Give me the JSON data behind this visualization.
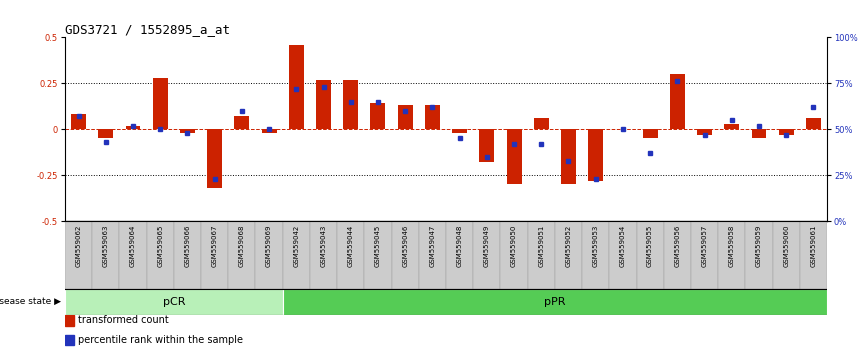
{
  "title": "GDS3721 / 1552895_a_at",
  "samples": [
    "GSM559062",
    "GSM559063",
    "GSM559064",
    "GSM559065",
    "GSM559066",
    "GSM559067",
    "GSM559068",
    "GSM559069",
    "GSM559042",
    "GSM559043",
    "GSM559044",
    "GSM559045",
    "GSM559046",
    "GSM559047",
    "GSM559048",
    "GSM559049",
    "GSM559050",
    "GSM559051",
    "GSM559052",
    "GSM559053",
    "GSM559054",
    "GSM559055",
    "GSM559056",
    "GSM559057",
    "GSM559058",
    "GSM559059",
    "GSM559060",
    "GSM559061"
  ],
  "red_bars": [
    0.08,
    -0.05,
    0.02,
    0.28,
    -0.02,
    -0.32,
    0.07,
    -0.02,
    0.46,
    0.27,
    0.27,
    0.14,
    0.13,
    0.13,
    -0.02,
    -0.18,
    -0.3,
    0.06,
    -0.3,
    -0.28,
    0.0,
    -0.05,
    0.3,
    -0.03,
    0.03,
    -0.05,
    -0.03,
    0.06
  ],
  "blue_dots": [
    57,
    43,
    52,
    50,
    48,
    23,
    60,
    50,
    72,
    73,
    65,
    65,
    60,
    62,
    45,
    35,
    42,
    42,
    33,
    23,
    50,
    37,
    76,
    47,
    55,
    52,
    47,
    62
  ],
  "groups": [
    {
      "label": "pCR",
      "start": 0,
      "end": 8,
      "color": "#b8f0b8"
    },
    {
      "label": "pPR",
      "start": 8,
      "end": 28,
      "color": "#55cc55"
    }
  ],
  "ylim_left": [
    -0.5,
    0.5
  ],
  "ylim_right": [
    0,
    100
  ],
  "yticks_left": [
    -0.5,
    -0.25,
    0.0,
    0.25,
    0.5
  ],
  "yticks_right": [
    0,
    25,
    50,
    75,
    100
  ],
  "hlines": [
    0.25,
    -0.25
  ],
  "bar_color": "#cc2200",
  "dot_color": "#2233bb",
  "background_color": "#ffffff",
  "title_fontsize": 9,
  "tick_fontsize": 6,
  "label_fontsize": 7,
  "legend_labels": [
    "transformed count",
    "percentile rank within the sample"
  ],
  "legend_colors": [
    "#cc2200",
    "#2233bb"
  ],
  "group_label_fontsize": 8,
  "disease_state_label": "disease state",
  "bar_width": 0.55
}
